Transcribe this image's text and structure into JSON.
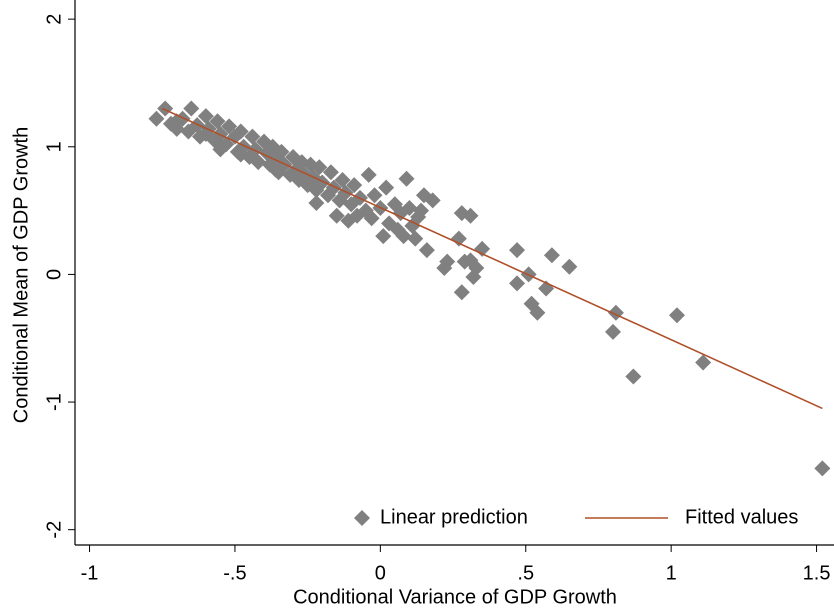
{
  "chart_data": {
    "type": "scatter",
    "x_label": "Conditional Variance of GDP Growth",
    "y_label": "Conditional Mean of GDP Growth",
    "xlim": [
      -1.05,
      1.56
    ],
    "ylim": [
      -2.12,
      2.15
    ],
    "xticks": [
      -1,
      {
        "value": -0.5,
        "label": "-.5"
      },
      0,
      {
        "value": 0.5,
        "label": ".5"
      },
      1,
      1.5
    ],
    "yticks": [
      -2,
      -1,
      0,
      1,
      2
    ],
    "legend": "bottom-right",
    "series": [
      {
        "name": "Linear prediction",
        "color": "#808080",
        "marker": "diamond",
        "x": [
          -0.77,
          -0.74,
          -0.72,
          -0.7,
          -0.68,
          -0.66,
          -0.65,
          -0.63,
          -0.62,
          -0.6,
          -0.59,
          -0.57,
          -0.56,
          -0.55,
          -0.53,
          -0.52,
          -0.5,
          -0.49,
          -0.48,
          -0.47,
          -0.45,
          -0.44,
          -0.43,
          -0.42,
          -0.4,
          -0.39,
          -0.38,
          -0.37,
          -0.36,
          -0.35,
          -0.34,
          -0.33,
          -0.31,
          -0.3,
          -0.29,
          -0.28,
          -0.27,
          -0.26,
          -0.25,
          -0.24,
          -0.23,
          -0.22,
          -0.21,
          -0.2,
          -0.18,
          -0.17,
          -0.16,
          -0.14,
          -0.13,
          -0.12,
          -0.1,
          -0.09,
          -0.08,
          -0.07,
          -0.05,
          -0.04,
          -0.03,
          -0.02,
          0.0,
          0.01,
          0.02,
          0.03,
          0.05,
          0.06,
          0.07,
          0.08,
          0.1,
          0.11,
          0.12,
          0.14,
          -0.48,
          -0.6,
          -0.7,
          -0.22,
          -0.15,
          -0.11,
          -0.36,
          -0.55,
          1.52,
          1.11,
          1.02,
          0.87,
          0.8,
          0.81,
          0.65,
          0.59,
          0.57,
          0.54,
          0.52,
          0.51,
          0.47,
          0.47,
          0.35,
          0.33,
          0.31,
          0.29,
          0.31,
          0.28,
          0.27,
          0.28,
          0.32,
          0.23,
          0.22,
          0.18,
          0.15,
          0.16,
          0.09,
          0.13
        ],
        "values": [
          1.22,
          1.3,
          1.18,
          1.14,
          1.22,
          1.12,
          1.3,
          1.17,
          1.08,
          1.24,
          1.14,
          1.05,
          1.2,
          1.1,
          1.02,
          1.16,
          1.08,
          0.96,
          1.12,
          1.0,
          0.92,
          1.08,
          0.98,
          0.88,
          1.04,
          0.95,
          0.86,
          1.0,
          0.9,
          0.8,
          0.96,
          0.86,
          0.78,
          0.92,
          0.82,
          0.74,
          0.88,
          0.78,
          0.7,
          0.86,
          0.76,
          0.66,
          0.84,
          0.72,
          0.62,
          0.8,
          0.68,
          0.58,
          0.74,
          0.64,
          0.55,
          0.7,
          0.46,
          0.6,
          0.5,
          0.78,
          0.44,
          0.62,
          0.52,
          0.3,
          0.68,
          0.4,
          0.55,
          0.35,
          0.48,
          0.3,
          0.52,
          0.38,
          0.28,
          0.5,
          0.94,
          1.1,
          1.2,
          0.56,
          0.46,
          0.42,
          0.82,
          0.98,
          -1.52,
          -0.69,
          -0.32,
          -0.8,
          -0.45,
          -0.3,
          0.06,
          0.15,
          -0.11,
          -0.3,
          -0.23,
          0.0,
          -0.07,
          0.19,
          0.2,
          0.05,
          0.11,
          0.1,
          0.46,
          0.48,
          0.28,
          -0.14,
          -0.02,
          0.1,
          0.05,
          0.58,
          0.62,
          0.19,
          0.75,
          0.45
        ]
      },
      {
        "name": "Fitted values",
        "color": "#b0502a",
        "line": true,
        "x": [
          -0.75,
          1.52
        ],
        "values": [
          1.3,
          -1.05
        ]
      }
    ]
  }
}
